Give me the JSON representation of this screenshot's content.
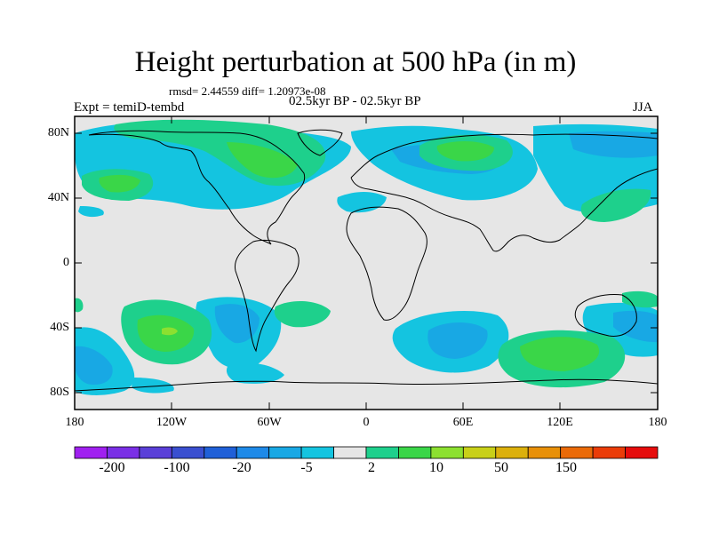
{
  "title": "Height perturbation at 500 hPa (in m)",
  "stats": "rmsd= 2.44559  diff= 1.20973e-08",
  "period": "02.5kyr BP - 02.5kyr BP",
  "experiment": "Expt = temiD-tembd",
  "season": "JJA",
  "chart_data": {
    "type": "heatmap",
    "lat_labels": [
      "80N",
      "40N",
      "0",
      "40S",
      "80S"
    ],
    "lon_labels": [
      "180",
      "120W",
      "60W",
      "0",
      "60E",
      "120E",
      "180"
    ],
    "colorbar": {
      "tick_labels": [
        "-200",
        "-100",
        "-20",
        "-5",
        "2",
        "10",
        "50",
        "150"
      ],
      "colors": [
        "#a020f0",
        "#7a2fe6",
        "#5a3fd8",
        "#3a4fd0",
        "#2060d8",
        "#1e8ae8",
        "#18a8e4",
        "#14c4e0",
        "#e6e6e6",
        "#1ed08c",
        "#3ad648",
        "#8ce030",
        "#c8d018",
        "#dcb00c",
        "#e89008",
        "#ea6a08",
        "#ea3c08",
        "#e60c0c"
      ],
      "background": "#e6e6e6"
    }
  }
}
